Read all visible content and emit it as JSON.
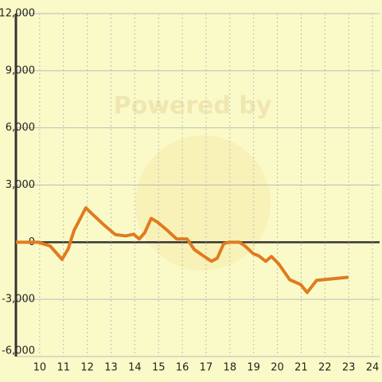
{
  "chart_data": {
    "type": "line",
    "watermark": "Powered by",
    "x": [
      9,
      9.93,
      10.44,
      10.94,
      11.2,
      11.44,
      11.94,
      12.28,
      12.71,
      13.18,
      13.62,
      13.95,
      14.19,
      14.42,
      14.69,
      14.96,
      15.36,
      15.76,
      16.2,
      16.5,
      16.83,
      17.23,
      17.47,
      17.74,
      17.97,
      18.4,
      18.64,
      18.98,
      19.21,
      19.51,
      19.75,
      20.05,
      20.52,
      20.98,
      21.25,
      21.65,
      22.99
    ],
    "series": [
      {
        "color": "#e07b20",
        "values": [
          0,
          0,
          -200,
          -900,
          -350,
          600,
          1800,
          1400,
          900,
          400,
          330,
          420,
          170,
          500,
          1250,
          1050,
          630,
          170,
          170,
          -380,
          -670,
          -1000,
          -840,
          -80,
          0,
          0,
          -200,
          -600,
          -710,
          -1000,
          -750,
          -1130,
          -1970,
          -2220,
          -2640,
          -2000,
          -1840
        ]
      }
    ],
    "xlim": [
      9,
      24.3
    ],
    "xticks": [
      10,
      11,
      12,
      13,
      14,
      15,
      16,
      17,
      18,
      19,
      20,
      21,
      22,
      23,
      24
    ],
    "ylim": [
      -6000,
      12000
    ],
    "yticks": [
      {
        "value": -6000,
        "label": "-6,000"
      },
      {
        "value": -3000,
        "label": "-3,000"
      },
      0,
      {
        "value": 3000,
        "label": "3,000"
      },
      {
        "value": 6000,
        "label": "6,000"
      },
      {
        "value": 9000,
        "label": "9,000"
      },
      {
        "value": 12000,
        "label": "12,000"
      }
    ],
    "grid": true
  }
}
